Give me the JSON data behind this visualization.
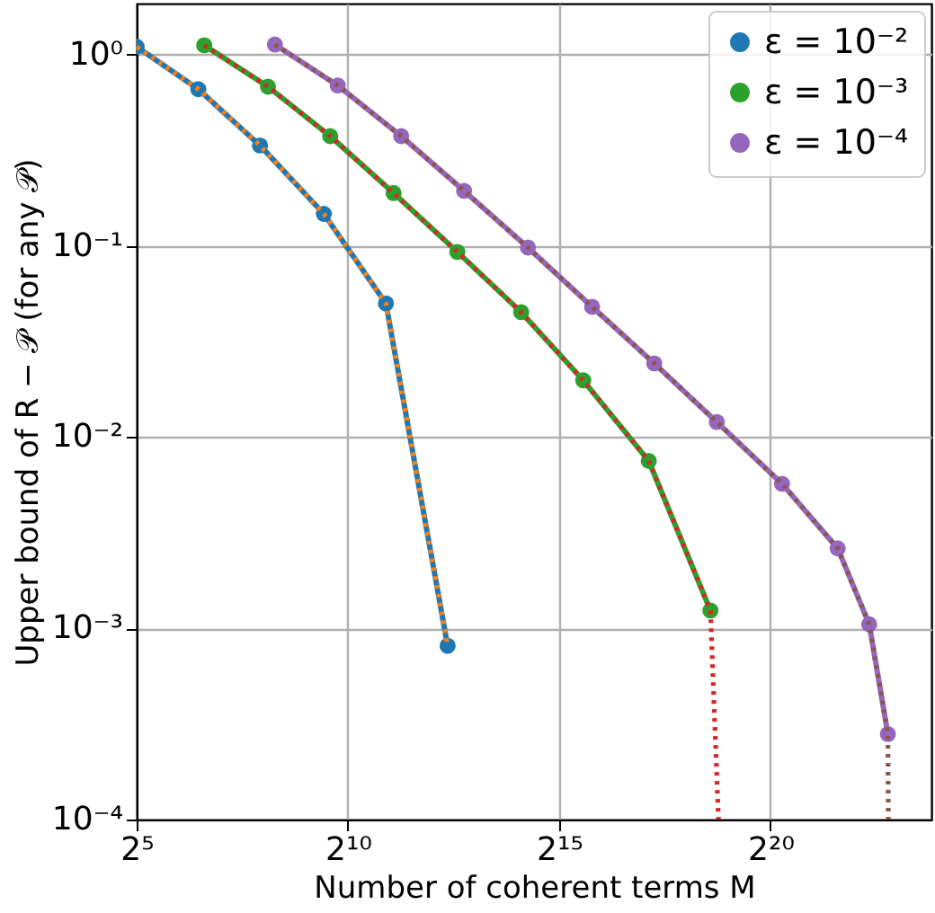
{
  "chart_data": {
    "type": "line",
    "xlabel": "Number of coherent terms M",
    "ylabel": "Upper bound of R − 𝒫 (for any 𝒫)",
    "log": "xy",
    "grid": true,
    "legend": "top right",
    "marker": "circle",
    "xlim": [
      32,
      14700000
    ],
    "ylim": [
      0.0001,
      1.85
    ],
    "xticks": [
      {
        "value": 32,
        "label": "2⁵"
      },
      {
        "value": 1024,
        "label": "2¹⁰"
      },
      {
        "value": 32768,
        "label": "2¹⁵"
      },
      {
        "value": 1048576,
        "label": "2²⁰"
      }
    ],
    "yticks": [
      {
        "value": 0.0001,
        "label": "10⁻⁴"
      },
      {
        "value": 0.001,
        "label": "10⁻³"
      },
      {
        "value": 0.01,
        "label": "10⁻²"
      },
      {
        "value": 0.1,
        "label": "10⁻¹"
      },
      {
        "value": 1,
        "label": "10⁰"
      }
    ],
    "series": [
      {
        "name": "ε = 10⁻²",
        "color": "#1f77b4",
        "x": [
          32,
          88,
          242,
          690,
          1911,
          5257
        ],
        "values": [
          1.1,
          0.66,
          0.335,
          0.147,
          0.05,
          0.00081
        ]
      },
      {
        "color": "#ff7f0e",
        "line_style": "dotted",
        "marker": "none",
        "x": [
          32,
          88,
          242,
          690,
          1911,
          5257
        ],
        "values": [
          1.1,
          0.66,
          0.335,
          0.147,
          0.05,
          0.00081
        ]
      },
      {
        "name": "ε = 10⁻³",
        "color": "#2ca02c",
        "x": [
          97,
          276,
          765,
          2165,
          6165,
          17560,
          48630,
          142500,
          391800
        ],
        "values": [
          1.12,
          0.68,
          0.375,
          0.189,
          0.093,
          0.045,
          0.0198,
          0.0075,
          0.00124
        ]
      },
      {
        "color": "#d62728",
        "line_style": "dotted",
        "marker": "none",
        "x": [
          97,
          276,
          765,
          2165,
          6165,
          17560,
          48630,
          142500,
          391800,
          447000
        ],
        "values": [
          1.12,
          0.68,
          0.375,
          0.189,
          0.093,
          0.045,
          0.0198,
          0.0075,
          0.00124,
          0.0001
        ]
      },
      {
        "name": "ε = 10⁻⁴",
        "color": "#9467bd",
        "x": [
          309,
          867,
          2453,
          6889,
          19620,
          56260,
          155800,
          434700,
          1268000,
          3160000,
          5300000,
          7200000
        ],
        "values": [
          1.13,
          0.69,
          0.375,
          0.194,
          0.098,
          0.048,
          0.0243,
          0.012,
          0.0057,
          0.00262,
          0.00105,
          0.00028
        ]
      },
      {
        "color": "#8c564b",
        "line_style": "dotted",
        "marker": "none",
        "x": [
          309,
          867,
          2453,
          6889,
          19620,
          56260,
          155800,
          434700,
          1268000,
          3160000,
          5300000,
          7200000,
          7250000
        ],
        "values": [
          1.13,
          0.69,
          0.375,
          0.194,
          0.098,
          0.048,
          0.0243,
          0.012,
          0.0057,
          0.00262,
          0.00105,
          0.00028,
          0.0001
        ]
      }
    ]
  }
}
